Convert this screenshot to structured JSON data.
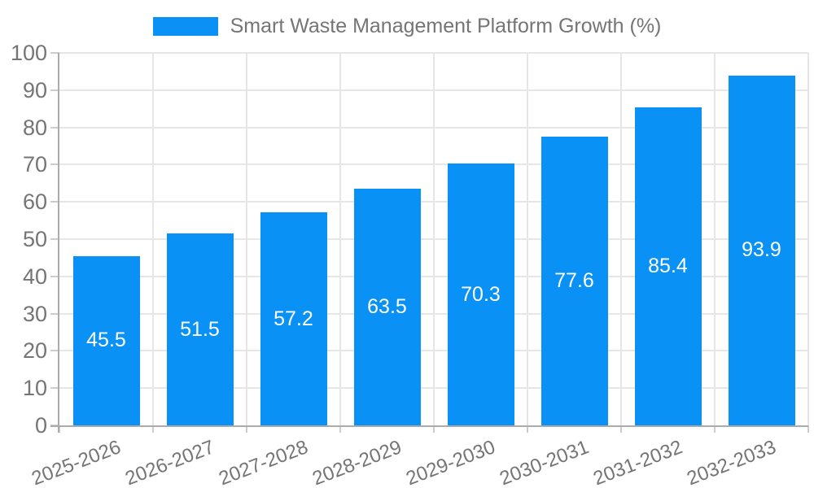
{
  "chart_data": {
    "type": "bar",
    "title": "Smart Waste Management Platform Growth (%)",
    "legend": [
      "Smart Waste Management Platform Growth (%)"
    ],
    "legend_position": "top",
    "categories": [
      "2025-2026",
      "2026-2027",
      "2027-2028",
      "2028-2029",
      "2029-2030",
      "2030-2031",
      "2031-2032",
      "2032-2033"
    ],
    "values": [
      45.5,
      51.5,
      57.2,
      63.5,
      70.3,
      77.6,
      85.4,
      93.9
    ],
    "value_labels": [
      "45.5",
      "51.5",
      "57.2",
      "63.5",
      "70.3",
      "77.6",
      "85.4",
      "93.9"
    ],
    "xlabel": "",
    "ylabel": "",
    "ylim": [
      0,
      100
    ],
    "ytick_step": 10,
    "yticks": [
      0,
      10,
      20,
      30,
      40,
      50,
      60,
      70,
      80,
      90,
      100
    ],
    "grid": true,
    "x_label_rotation_deg": -21,
    "colors": {
      "bar": "#0a91f5",
      "grid": "#e6e6e6",
      "tick": "#cccccc",
      "axis": "#ababab",
      "text": "#757575",
      "value_text": "#ffffff",
      "background": "#ffffff"
    }
  }
}
